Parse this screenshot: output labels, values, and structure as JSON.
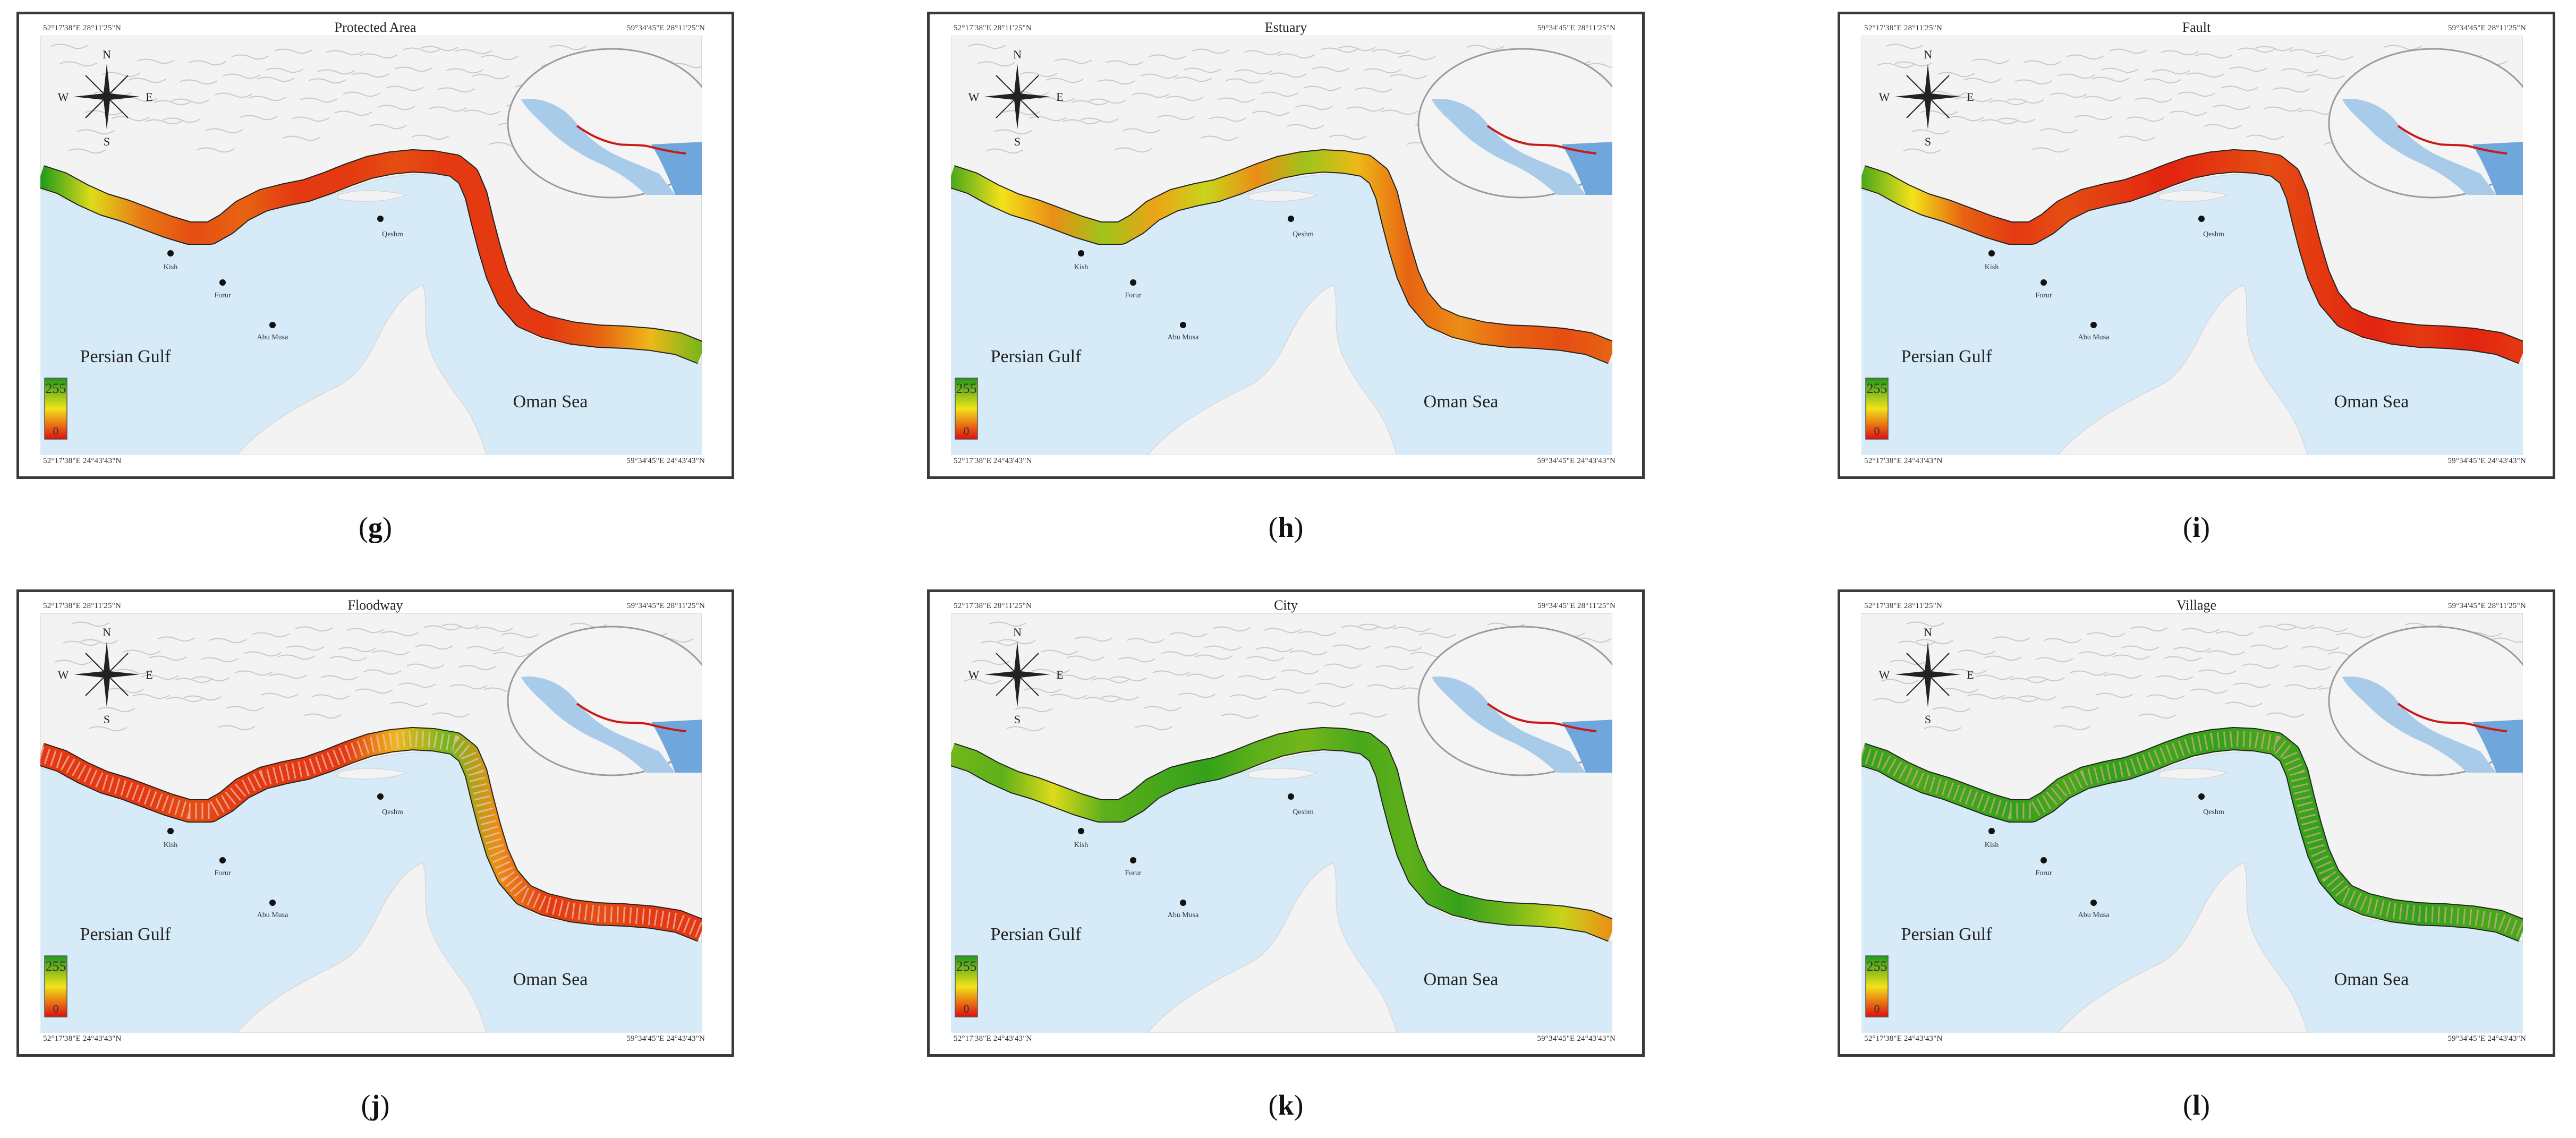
{
  "coordinates": {
    "top_left": "52°17'38\"E 28°11'25\"N",
    "top_right": "59°34'45\"E 28°11'25\"N",
    "bottom_left": "52°17'38\"E 24°43'43\"N",
    "bottom_right": "59°34'45\"E 24°43'43\"N"
  },
  "compass": {
    "n": "N",
    "s": "S",
    "e": "E",
    "w": "W"
  },
  "places": {
    "persian_gulf": "Persian Gulf",
    "oman_sea": "Oman Sea",
    "kish": "Kish",
    "forur": "Forur",
    "qeshm": "Qeshm",
    "abu_musa": "Abu Musa"
  },
  "legend": {
    "high": "255",
    "low": "0"
  },
  "colors": {
    "high": "#1f9a1a",
    "mid": "#f2e21a",
    "low": "#e00f0f",
    "water": "#d6ebf7",
    "land": "#f3f3f3"
  },
  "panels": [
    {
      "title": "Protected Area",
      "letter": "g"
    },
    {
      "title": "Estuary",
      "letter": "h"
    },
    {
      "title": "Fault",
      "letter": "i"
    },
    {
      "title": "Floodway",
      "letter": "j"
    },
    {
      "title": "City",
      "letter": "k"
    },
    {
      "title": "Village",
      "letter": "l"
    }
  ]
}
